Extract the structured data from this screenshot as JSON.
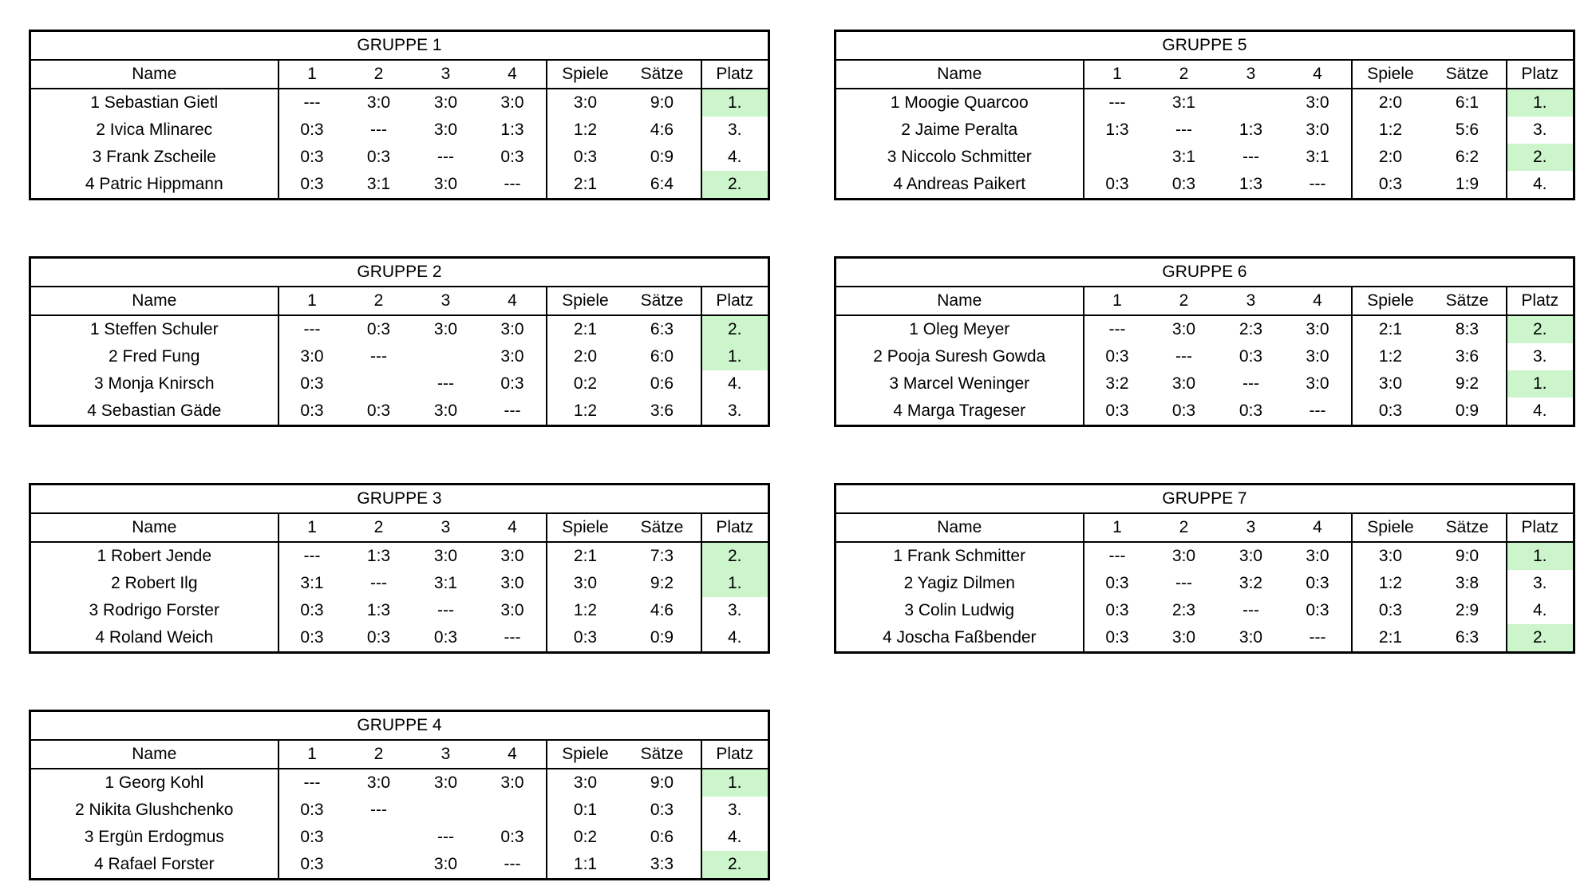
{
  "colors": {
    "highlight": "#ccf5cc",
    "border": "#000000",
    "background": "#ffffff"
  },
  "columns": {
    "name": "Name",
    "rounds": [
      "1",
      "2",
      "3",
      "4"
    ],
    "spiele": "Spiele",
    "saetze": "Sätze",
    "platz": "Platz"
  },
  "groups": [
    {
      "title": "GRUPPE 1",
      "side": "left",
      "rows": [
        {
          "name": "1 Sebastian Gietl",
          "results": [
            "---",
            "3:0",
            "3:0",
            "3:0"
          ],
          "spiele": "3:0",
          "saetze": "9:0",
          "platz": "1.",
          "highlight": true
        },
        {
          "name": "2 Ivica Mlinarec",
          "results": [
            "0:3",
            "---",
            "3:0",
            "1:3"
          ],
          "spiele": "1:2",
          "saetze": "4:6",
          "platz": "3.",
          "highlight": false
        },
        {
          "name": "3 Frank Zscheile",
          "results": [
            "0:3",
            "0:3",
            "---",
            "0:3"
          ],
          "spiele": "0:3",
          "saetze": "0:9",
          "platz": "4.",
          "highlight": false
        },
        {
          "name": "4 Patric Hippmann",
          "results": [
            "0:3",
            "3:1",
            "3:0",
            "---"
          ],
          "spiele": "2:1",
          "saetze": "6:4",
          "platz": "2.",
          "highlight": true
        }
      ]
    },
    {
      "title": "GRUPPE 2",
      "side": "left",
      "rows": [
        {
          "name": "1 Steffen Schuler",
          "results": [
            "---",
            "0:3",
            "3:0",
            "3:0"
          ],
          "spiele": "2:1",
          "saetze": "6:3",
          "platz": "2.",
          "highlight": true
        },
        {
          "name": "2 Fred Fung",
          "results": [
            "3:0",
            "---",
            "",
            "3:0"
          ],
          "spiele": "2:0",
          "saetze": "6:0",
          "platz": "1.",
          "highlight": true
        },
        {
          "name": "3 Monja Knirsch",
          "results": [
            "0:3",
            "",
            "---",
            "0:3"
          ],
          "spiele": "0:2",
          "saetze": "0:6",
          "platz": "4.",
          "highlight": false
        },
        {
          "name": "4 Sebastian Gäde",
          "results": [
            "0:3",
            "0:3",
            "3:0",
            "---"
          ],
          "spiele": "1:2",
          "saetze": "3:6",
          "platz": "3.",
          "highlight": false
        }
      ]
    },
    {
      "title": "GRUPPE 3",
      "side": "left",
      "rows": [
        {
          "name": "1 Robert Jende",
          "results": [
            "---",
            "1:3",
            "3:0",
            "3:0"
          ],
          "spiele": "2:1",
          "saetze": "7:3",
          "platz": "2.",
          "highlight": true
        },
        {
          "name": "2 Robert Ilg",
          "results": [
            "3:1",
            "---",
            "3:1",
            "3:0"
          ],
          "spiele": "3:0",
          "saetze": "9:2",
          "platz": "1.",
          "highlight": true
        },
        {
          "name": "3 Rodrigo Forster",
          "results": [
            "0:3",
            "1:3",
            "---",
            "3:0"
          ],
          "spiele": "1:2",
          "saetze": "4:6",
          "platz": "3.",
          "highlight": false
        },
        {
          "name": "4 Roland Weich",
          "results": [
            "0:3",
            "0:3",
            "0:3",
            "---"
          ],
          "spiele": "0:3",
          "saetze": "0:9",
          "platz": "4.",
          "highlight": false
        }
      ]
    },
    {
      "title": "GRUPPE 4",
      "side": "left",
      "rows": [
        {
          "name": "1 Georg Kohl",
          "results": [
            "---",
            "3:0",
            "3:0",
            "3:0"
          ],
          "spiele": "3:0",
          "saetze": "9:0",
          "platz": "1.",
          "highlight": true
        },
        {
          "name": "2 Nikita Glushchenko",
          "results": [
            "0:3",
            "---",
            "",
            ""
          ],
          "spiele": "0:1",
          "saetze": "0:3",
          "platz": "3.",
          "highlight": false
        },
        {
          "name": "3 Ergün Erdogmus",
          "results": [
            "0:3",
            "",
            "---",
            "0:3"
          ],
          "spiele": "0:2",
          "saetze": "0:6",
          "platz": "4.",
          "highlight": false
        },
        {
          "name": "4 Rafael Forster",
          "results": [
            "0:3",
            "",
            "3:0",
            "---"
          ],
          "spiele": "1:1",
          "saetze": "3:3",
          "platz": "2.",
          "highlight": true
        }
      ]
    },
    {
      "title": "GRUPPE 5",
      "side": "right",
      "rows": [
        {
          "name": "1 Moogie Quarcoo",
          "results": [
            "---",
            "3:1",
            "",
            "3:0"
          ],
          "spiele": "2:0",
          "saetze": "6:1",
          "platz": "1.",
          "highlight": true
        },
        {
          "name": "2 Jaime Peralta",
          "results": [
            "1:3",
            "---",
            "1:3",
            "3:0"
          ],
          "spiele": "1:2",
          "saetze": "5:6",
          "platz": "3.",
          "highlight": false
        },
        {
          "name": "3 Niccolo Schmitter",
          "results": [
            "",
            "3:1",
            "---",
            "3:1"
          ],
          "spiele": "2:0",
          "saetze": "6:2",
          "platz": "2.",
          "highlight": true
        },
        {
          "name": "4 Andreas Paikert",
          "results": [
            "0:3",
            "0:3",
            "1:3",
            "---"
          ],
          "spiele": "0:3",
          "saetze": "1:9",
          "platz": "4.",
          "highlight": false
        }
      ]
    },
    {
      "title": "GRUPPE 6",
      "side": "right",
      "rows": [
        {
          "name": "1 Oleg Meyer",
          "results": [
            "---",
            "3:0",
            "2:3",
            "3:0"
          ],
          "spiele": "2:1",
          "saetze": "8:3",
          "platz": "2.",
          "highlight": true
        },
        {
          "name": "2 Pooja Suresh Gowda",
          "results": [
            "0:3",
            "---",
            "0:3",
            "3:0"
          ],
          "spiele": "1:2",
          "saetze": "3:6",
          "platz": "3.",
          "highlight": false
        },
        {
          "name": "3 Marcel Weninger",
          "results": [
            "3:2",
            "3:0",
            "---",
            "3:0"
          ],
          "spiele": "3:0",
          "saetze": "9:2",
          "platz": "1.",
          "highlight": true
        },
        {
          "name": "4 Marga Trageser",
          "results": [
            "0:3",
            "0:3",
            "0:3",
            "---"
          ],
          "spiele": "0:3",
          "saetze": "0:9",
          "platz": "4.",
          "highlight": false
        }
      ]
    },
    {
      "title": "GRUPPE 7",
      "side": "right",
      "rows": [
        {
          "name": "1 Frank Schmitter",
          "results": [
            "---",
            "3:0",
            "3:0",
            "3:0"
          ],
          "spiele": "3:0",
          "saetze": "9:0",
          "platz": "1.",
          "highlight": true
        },
        {
          "name": "2 Yagiz Dilmen",
          "results": [
            "0:3",
            "---",
            "3:2",
            "0:3"
          ],
          "spiele": "1:2",
          "saetze": "3:8",
          "platz": "3.",
          "highlight": false
        },
        {
          "name": "3 Colin Ludwig",
          "results": [
            "0:3",
            "2:3",
            "---",
            "0:3"
          ],
          "spiele": "0:3",
          "saetze": "2:9",
          "platz": "4.",
          "highlight": false
        },
        {
          "name": "4 Joscha Faßbender",
          "results": [
            "0:3",
            "3:0",
            "3:0",
            "---"
          ],
          "spiele": "2:1",
          "saetze": "6:3",
          "platz": "2.",
          "highlight": true
        }
      ]
    }
  ]
}
